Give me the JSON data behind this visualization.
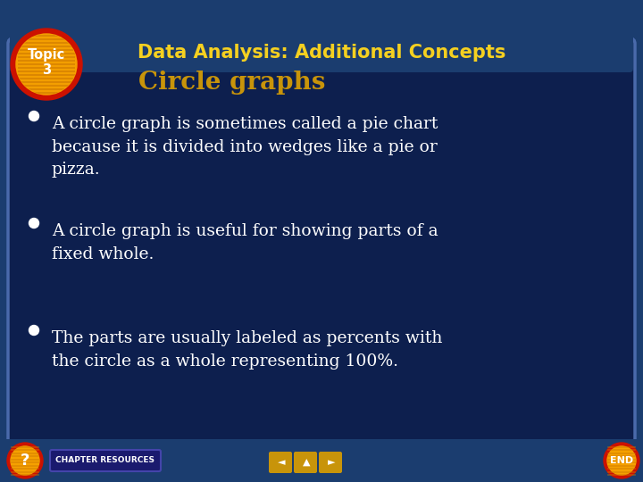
{
  "title": "Data Analysis: Additional Concepts",
  "subtitle": "Circle graphs",
  "topic_label": "Topic\n3",
  "bullets": [
    "A circle graph is sometimes called a pie chart\nbecause it is divided into wedges like a pie or\npizza.",
    "A circle graph is useful for showing parts of a\nfixed whole.",
    "The parts are usually labeled as percents with\nthe circle as a whole representing 100%."
  ],
  "bg_outer": "#1b3d6f",
  "bg_inner": "#0d1f4e",
  "title_color": "#f5d020",
  "subtitle_color": "#c8940a",
  "bullet_color": "#ffffff",
  "topic_circle_red": "#cc1100",
  "topic_circle_orange": "#f5a000",
  "topic_stripe_color": "#cc7700",
  "topic_text_color": "#ffffff",
  "chapter_resources_color": "#ffffff",
  "chapter_resources_bg": "#1a1a6e",
  "chapter_resources_border": "#4444aa",
  "end_button_orange": "#f5a000",
  "end_button_red": "#cc1100",
  "end_text_color": "#ffffff",
  "nav_button_color": "#c8940a",
  "inner_rect_border": "#4a6aab",
  "bottom_bar_color": "#1b3d6f"
}
